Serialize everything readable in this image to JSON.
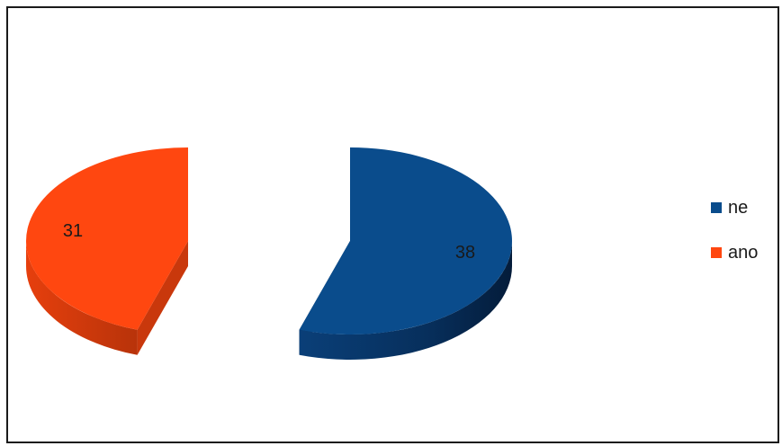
{
  "chart_data": {
    "type": "pie",
    "style": "3d-exploded",
    "slices": [
      {
        "name": "ne",
        "value": 38,
        "color": "#0a4c8c",
        "dark_color": "#062d57"
      },
      {
        "name": "ano",
        "value": 31,
        "color": "#ff4710",
        "dark_color": "#c9380c"
      }
    ],
    "legend_position": "right"
  }
}
